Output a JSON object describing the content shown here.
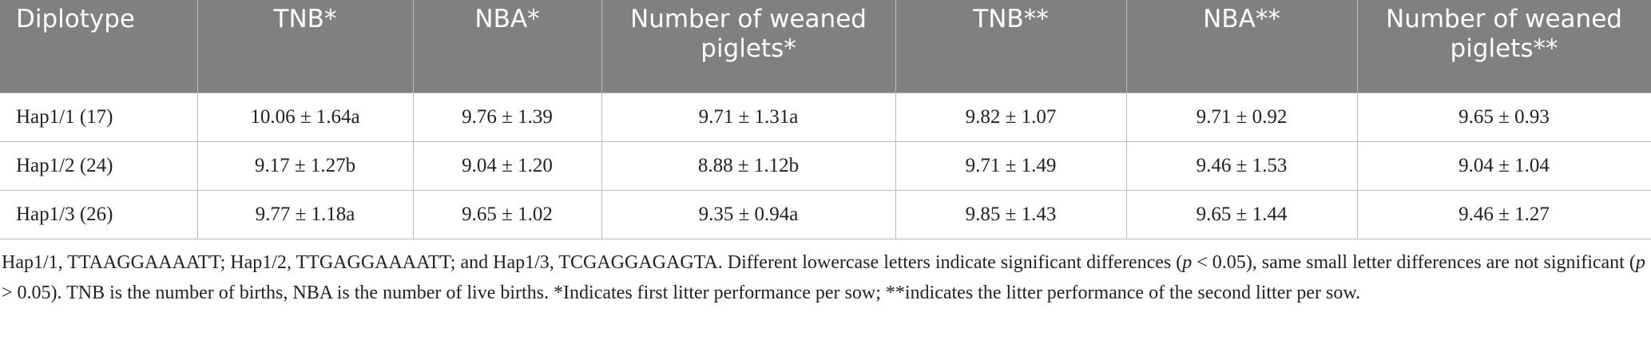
{
  "table": {
    "header": [
      "Diplotype",
      "TNB*",
      "NBA*",
      "Number of weaned piglets*",
      "TNB**",
      "NBA**",
      "Number of weaned piglets**"
    ],
    "rows": [
      [
        "Hap1/1 (17)",
        "10.06 ± 1.64a",
        "9.76 ± 1.39",
        "9.71 ± 1.31a",
        "9.82 ± 1.07",
        "9.71 ± 0.92",
        "9.65 ± 0.93"
      ],
      [
        "Hap1/2 (24)",
        "9.17 ± 1.27b",
        "9.04 ± 1.20",
        "8.88 ± 1.12b",
        "9.71 ± 1.49",
        "9.46 ± 1.53",
        "9.04 ± 1.04"
      ],
      [
        "Hap1/3 (26)",
        "9.77 ± 1.18a",
        "9.65 ± 1.02",
        "9.35 ± 0.94a",
        "9.85 ± 1.43",
        "9.65 ± 1.44",
        "9.46 ± 1.27"
      ]
    ]
  },
  "footnote": [
    "Hap1/1, TTAAGGAAAATT; Hap1/2, TTGAGGAAAATT; and Hap1/3, TCGAGGAGAGTA. Different lowercase letters indicate significant differences (",
    "p",
    " < 0.05), same small letter differences are not significant (",
    "p",
    " > 0.05). TNB is the number of births, NBA is the number of live births. *Indicates first litter performance per sow; **indicates the litter performance of the second litter per sow."
  ]
}
